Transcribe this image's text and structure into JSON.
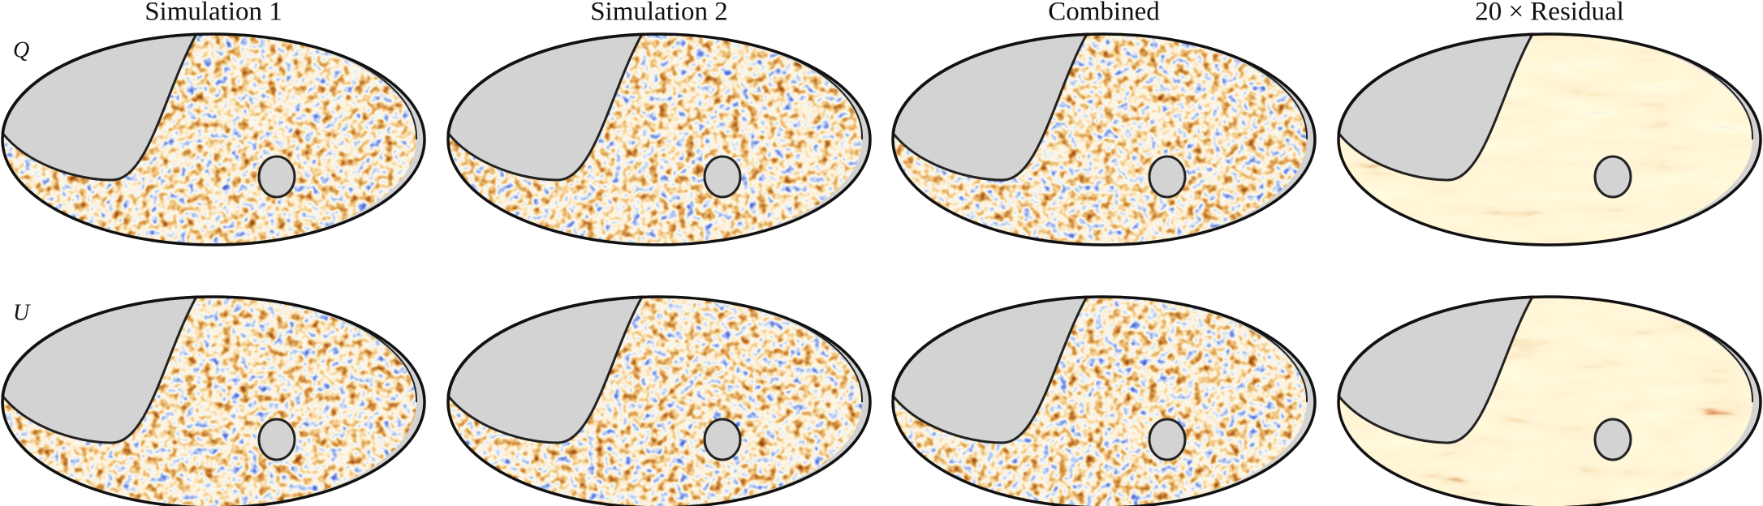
{
  "columns": [
    "Simulation 1",
    "Simulation 2",
    "Combined",
    "20 × Residual"
  ],
  "rows": [
    "Q",
    "U"
  ]
}
